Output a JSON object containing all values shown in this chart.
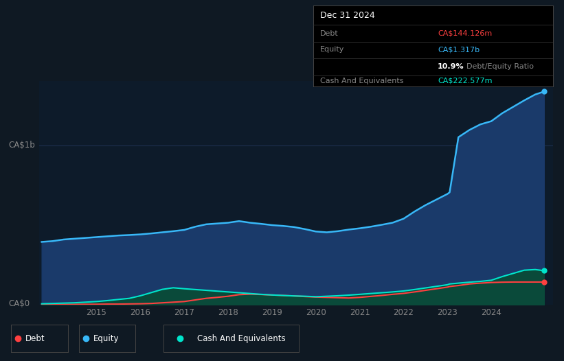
{
  "bg_color": "#0f1923",
  "plot_bg_color": "#0d1b2a",
  "grid_color": "#1e3050",
  "title_box": {
    "date": "Dec 31 2024",
    "debt_label": "Debt",
    "debt_value": "CA$144.126m",
    "debt_color": "#ff4040",
    "equity_label": "Equity",
    "equity_value": "CA$1.317b",
    "equity_color": "#38b8f8",
    "ratio_value": "10.9%",
    "ratio_text": "Debt/Equity Ratio",
    "cash_label": "Cash And Equivalents",
    "cash_value": "CA$222.577m",
    "cash_color": "#00e5cc",
    "label_color": "#888888",
    "box_bg": "#000000"
  },
  "ylabel_top": "CA$1b",
  "ylabel_bottom": "CA$0",
  "ylim": [
    0,
    1400
  ],
  "y_1b_level": 1000,
  "xlim_start": 2013.7,
  "xlim_end": 2025.4,
  "xticks": [
    2015,
    2016,
    2017,
    2018,
    2019,
    2020,
    2021,
    2022,
    2023,
    2024
  ],
  "equity_color": "#38b8f8",
  "equity_fill": "#1a3a6a",
  "debt_color": "#ff4040",
  "cash_color": "#00e5cc",
  "cash_fill": "#0a4a3a",
  "legend_items": [
    {
      "label": "Debt",
      "color": "#ff4040"
    },
    {
      "label": "Equity",
      "color": "#38b8f8"
    },
    {
      "label": "Cash And Equivalents",
      "color": "#00e5cc"
    }
  ],
  "years": [
    2013.75,
    2014.0,
    2014.25,
    2014.5,
    2014.75,
    2015.0,
    2015.25,
    2015.5,
    2015.75,
    2016.0,
    2016.25,
    2016.5,
    2016.75,
    2017.0,
    2017.25,
    2017.5,
    2017.75,
    2018.0,
    2018.25,
    2018.5,
    2018.75,
    2019.0,
    2019.25,
    2019.5,
    2019.75,
    2020.0,
    2020.25,
    2020.5,
    2020.75,
    2021.0,
    2021.25,
    2021.5,
    2021.75,
    2022.0,
    2022.25,
    2022.5,
    2022.75,
    2023.0,
    2023.05,
    2023.25,
    2023.5,
    2023.75,
    2024.0,
    2024.25,
    2024.5,
    2024.75,
    2025.0,
    2025.2
  ],
  "equity": [
    395,
    400,
    410,
    415,
    420,
    425,
    430,
    435,
    438,
    442,
    448,
    455,
    462,
    470,
    490,
    505,
    510,
    515,
    525,
    515,
    508,
    500,
    495,
    488,
    475,
    460,
    455,
    462,
    472,
    480,
    490,
    502,
    515,
    540,
    585,
    625,
    660,
    695,
    705,
    1050,
    1095,
    1130,
    1150,
    1200,
    1240,
    1280,
    1317,
    1335
  ],
  "debt": [
    3,
    3,
    4,
    4,
    5,
    5,
    6,
    6,
    7,
    8,
    10,
    14,
    18,
    22,
    32,
    42,
    48,
    55,
    65,
    68,
    66,
    63,
    60,
    57,
    53,
    50,
    48,
    46,
    44,
    48,
    54,
    60,
    67,
    73,
    82,
    92,
    102,
    112,
    116,
    122,
    132,
    137,
    141,
    143,
    144,
    144,
    144,
    144
  ],
  "cash": [
    8,
    10,
    12,
    14,
    18,
    22,
    28,
    35,
    42,
    58,
    78,
    98,
    108,
    102,
    97,
    92,
    87,
    82,
    77,
    72,
    67,
    63,
    60,
    57,
    55,
    52,
    55,
    58,
    62,
    67,
    72,
    77,
    82,
    88,
    97,
    107,
    117,
    127,
    132,
    137,
    143,
    148,
    155,
    178,
    198,
    218,
    222,
    215
  ]
}
